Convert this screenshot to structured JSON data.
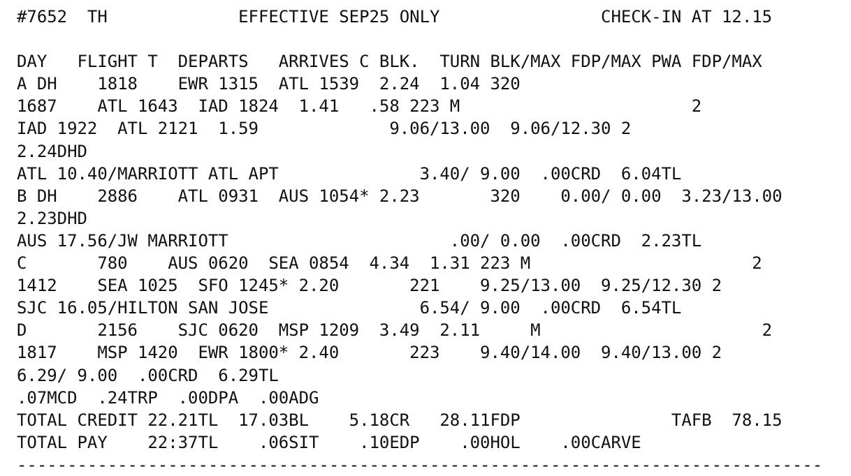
{
  "header": {
    "line": "#7652  TH             EFFECTIVE SEP25 ONLY                CHECK-IN AT 12.15"
  },
  "table": {
    "column_header": "DAY   FLIGHT T  DEPARTS   ARRIVES C BLK.  TURN BLK/MAX FDP/MAX PWA FDP/MAX",
    "rows": [
      "A DH    1818    EWR 1315  ATL 1539  2.24  1.04 320",
      "1687    ATL 1643  IAD 1824  1.41   .58 223 M                       2",
      "IAD 1922  ATL 2121  1.59             9.06/13.00  9.06/12.30 2",
      "2.24DHD",
      "ATL 10.40/MARRIOTT ATL APT              3.40/ 9.00  .00CRD  6.04TL",
      "B DH    2886    ATL 0931  AUS 1054* 2.23       320    0.00/ 0.00  3.23/13.00",
      "2.23DHD",
      "AUS 17.56/JW MARRIOTT                      .00/ 0.00  .00CRD  2.23TL",
      "C       780    AUS 0620  SEA 0854  4.34  1.31 223 M                      2",
      "1412    SEA 1025  SFO 1245* 2.20       221    9.25/13.00  9.25/12.30 2",
      "SJC 16.05/HILTON SAN JOSE               6.54/ 9.00  .00CRD  6.54TL",
      "D       2156    SJC 0620  MSP 1209  3.49  2.11     M                      2",
      "1817    MSP 1420  EWR 1800* 2.40       223    9.40/14.00  9.40/13.00 2",
      "6.29/ 9.00  .00CRD  6.29TL",
      ".07MCD  .24TRP  .00DPA  .00ADG"
    ]
  },
  "totals": {
    "credit_line": "TOTAL CREDIT 22.21TL  17.03BL    5.18CR   28.11FDP               TAFB  78.15",
    "pay_line": "TOTAL PAY    22:37TL    .06SIT    .10EDP    .00HOL    .00CARVE"
  },
  "footer": {
    "rule": "--------------------------------------------------------------------------------"
  }
}
